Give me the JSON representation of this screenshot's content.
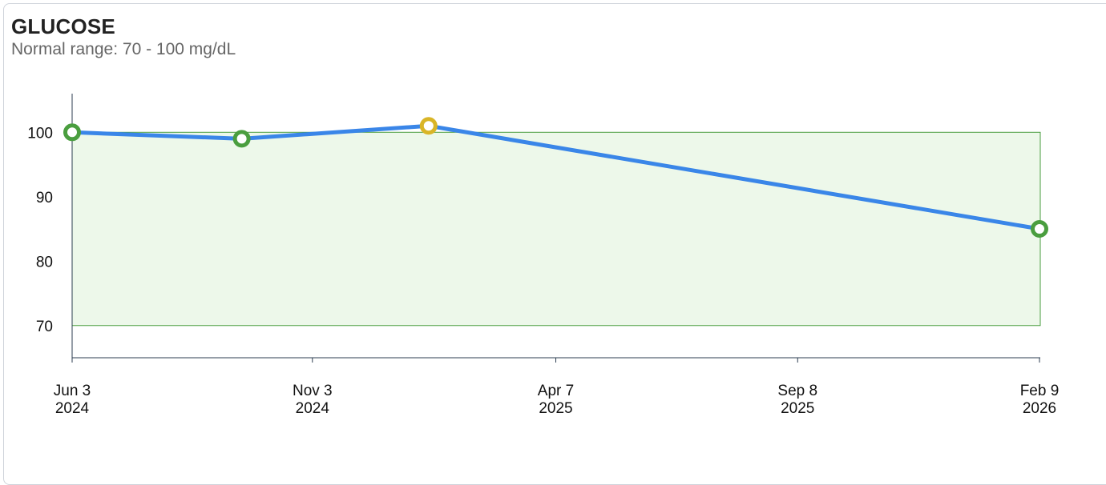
{
  "chart_data": {
    "type": "line",
    "title": "GLUCOSE",
    "subtitle": "Normal range: 70 - 100 mg/dL",
    "xlabel": "",
    "ylabel": "",
    "xlim": [
      "2024-06-03",
      "2026-02-09"
    ],
    "ylim": [
      65,
      106
    ],
    "normal_range": [
      70,
      100
    ],
    "y_ticks": [
      70,
      80,
      90,
      100
    ],
    "x_ticks": [
      {
        "date": "2024-06-03",
        "line1": "Jun 3",
        "line2": "2024"
      },
      {
        "date": "2024-11-03",
        "line1": "Nov 3",
        "line2": "2024"
      },
      {
        "date": "2025-04-07",
        "line1": "Apr 7",
        "line2": "2025"
      },
      {
        "date": "2025-09-08",
        "line1": "Sep 8",
        "line2": "2025"
      },
      {
        "date": "2026-02-09",
        "line1": "Feb 9",
        "line2": "2026"
      }
    ],
    "points": [
      {
        "date": "2024-06-03",
        "value": 100,
        "status": "normal"
      },
      {
        "date": "2024-09-19",
        "value": 99,
        "status": "normal"
      },
      {
        "date": "2025-01-16",
        "value": 101,
        "status": "high"
      },
      {
        "date": "2026-02-09",
        "value": 85,
        "status": "normal"
      }
    ],
    "grid": false,
    "colors": {
      "line": "#3a86e8",
      "normal": "#4a9e3f",
      "high": "#d9b527",
      "range_fill": "#edf8ea",
      "range_stroke": "#4a9e3f",
      "axis": "#2c3e50"
    }
  }
}
